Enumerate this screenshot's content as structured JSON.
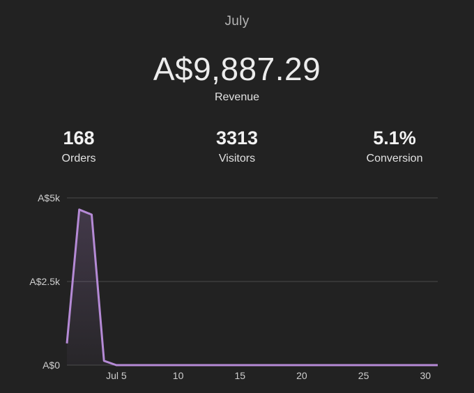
{
  "header": {
    "month": "July",
    "revenue_value": "A$9,887.29",
    "revenue_label": "Revenue"
  },
  "stats": {
    "orders": {
      "value": "168",
      "label": "Orders"
    },
    "visitors": {
      "value": "3313",
      "label": "Visitors"
    },
    "conversion": {
      "value": "5.1%",
      "label": "Conversion"
    }
  },
  "colors": {
    "background": "#222222",
    "line": "#b58ad6",
    "gridline": "#4a4a4a"
  },
  "chart_data": {
    "type": "area",
    "ylim": [
      0,
      5000
    ],
    "xlim": [
      1,
      31
    ],
    "y_ticks": [
      {
        "value": 0,
        "label": "A$0"
      },
      {
        "value": 2500,
        "label": "A$2.5k"
      },
      {
        "value": 5000,
        "label": "A$5k"
      }
    ],
    "x_ticks": [
      {
        "value": 5,
        "label": "Jul 5"
      },
      {
        "value": 10,
        "label": "10"
      },
      {
        "value": 15,
        "label": "15"
      },
      {
        "value": 20,
        "label": "20"
      },
      {
        "value": 25,
        "label": "25"
      },
      {
        "value": 30,
        "label": "30"
      }
    ],
    "x": [
      1,
      2,
      3,
      4,
      5,
      6,
      7,
      8,
      9,
      10,
      11,
      12,
      13,
      14,
      15,
      16,
      17,
      18,
      19,
      20,
      21,
      22,
      23,
      24,
      25,
      26,
      27,
      28,
      29,
      30,
      31
    ],
    "values": [
      650,
      4650,
      4500,
      130,
      0,
      0,
      0,
      0,
      0,
      0,
      0,
      0,
      0,
      0,
      0,
      0,
      0,
      0,
      0,
      0,
      0,
      0,
      0,
      0,
      0,
      0,
      0,
      0,
      0,
      0,
      0
    ],
    "grid": true
  }
}
